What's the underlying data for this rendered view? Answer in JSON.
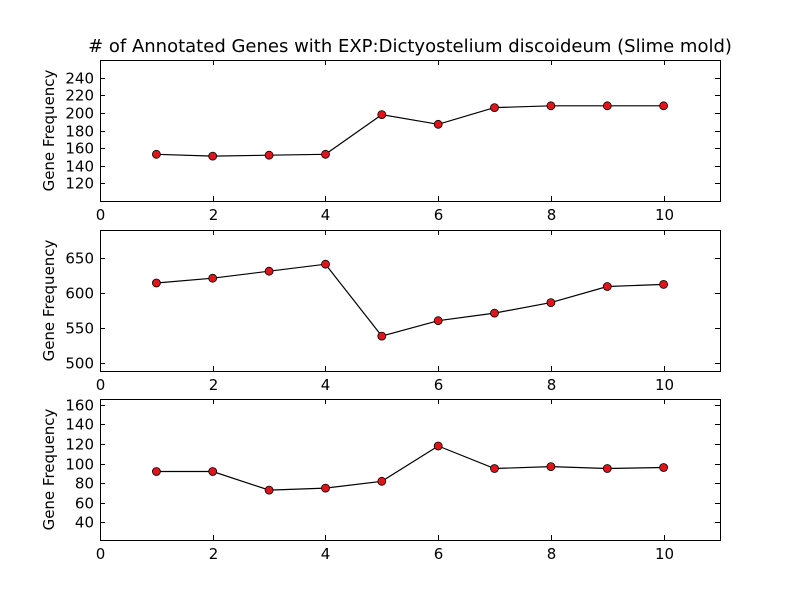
{
  "title": "# of Annotated Genes with EXP:Dictyostelium discoideum (Slime mold)",
  "colors": {
    "marker_fill": "#e0141b",
    "line": "#000000"
  },
  "chart_data": [
    {
      "type": "line",
      "x": [
        1,
        2,
        3,
        4,
        5,
        6,
        7,
        8,
        9,
        10
      ],
      "values": [
        153,
        151,
        152,
        153,
        198,
        187,
        206,
        208,
        208,
        208
      ],
      "xlabel": "",
      "ylabel": "Gene Frequency",
      "xlim": [
        0,
        11
      ],
      "ylim": [
        100,
        260
      ],
      "xticks": [
        0,
        2,
        4,
        6,
        8,
        10
      ],
      "yticks": [
        120,
        140,
        160,
        180,
        200,
        220,
        240
      ],
      "grid": false
    },
    {
      "type": "line",
      "x": [
        1,
        2,
        3,
        4,
        5,
        6,
        7,
        8,
        9,
        10
      ],
      "values": [
        614,
        621,
        631,
        641,
        538,
        560,
        571,
        586,
        609,
        612
      ],
      "xlabel": "",
      "ylabel": "Gene Frequency",
      "xlim": [
        0,
        11
      ],
      "ylim": [
        488,
        690
      ],
      "xticks": [
        0,
        2,
        4,
        6,
        8,
        10
      ],
      "yticks": [
        500,
        550,
        600,
        650
      ],
      "grid": false
    },
    {
      "type": "line",
      "x": [
        1,
        2,
        3,
        4,
        5,
        6,
        7,
        8,
        9,
        10
      ],
      "values": [
        92,
        92,
        73,
        75,
        82,
        118,
        95,
        97,
        95,
        96
      ],
      "xlabel": "",
      "ylabel": "Gene Frequency",
      "xlim": [
        0,
        11
      ],
      "ylim": [
        22,
        166
      ],
      "xticks": [
        0,
        2,
        4,
        6,
        8,
        10
      ],
      "yticks": [
        40,
        60,
        80,
        100,
        120,
        140,
        160
      ],
      "grid": false
    }
  ]
}
